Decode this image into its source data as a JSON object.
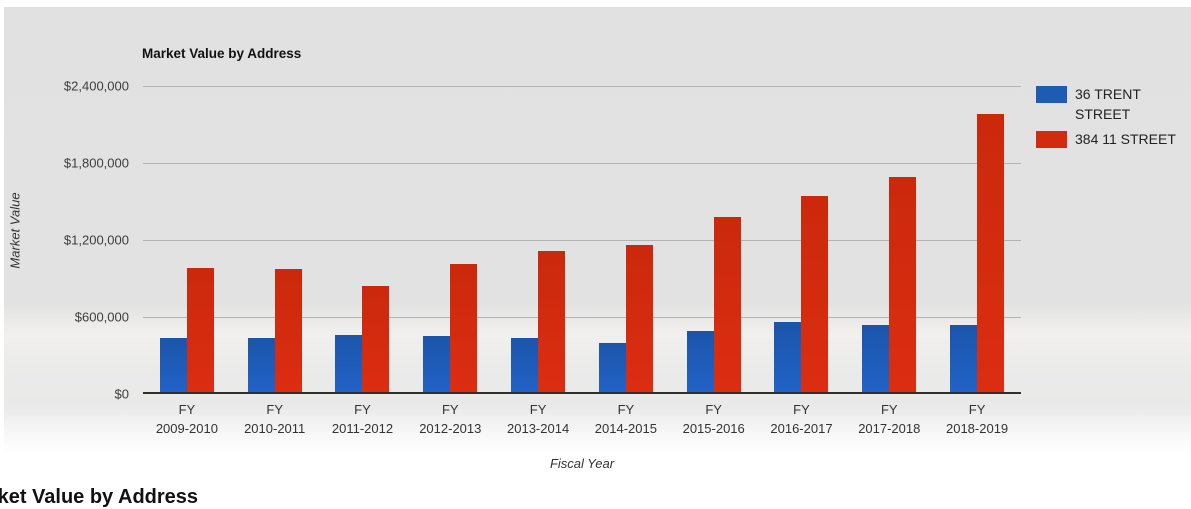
{
  "page": {
    "clipped_title": "Market Value by Address"
  },
  "chart_data": {
    "type": "bar",
    "title": "Market Value by Address",
    "xlabel": "Fiscal Year",
    "ylabel": "Market Value",
    "categories": [
      "FY 2009-2010",
      "FY 2010-2011",
      "FY 2011-2012",
      "FY 2012-2013",
      "FY 2013-2014",
      "FY 2014-2015",
      "FY 2015-2016",
      "FY 2016-2017",
      "FY 2017-2018",
      "FY 2018-2019"
    ],
    "series": [
      {
        "name": "36 TRENT STREET",
        "color": "#1d5cb5",
        "color_top": "#1b55aa",
        "color_bottom": "#2263c8",
        "values": [
          440000,
          435000,
          460000,
          455000,
          440000,
          400000,
          490000,
          560000,
          540000,
          540000
        ]
      },
      {
        "name": "384 11 STREET",
        "color": "#d32b0e",
        "color_top": "#cb290c",
        "color_bottom": "#dc2d11",
        "values": [
          985000,
          975000,
          845000,
          1015000,
          1115000,
          1165000,
          1380000,
          1545000,
          1690000,
          2180000
        ]
      }
    ],
    "y_ticks": [
      {
        "value": 0,
        "label": "$0"
      },
      {
        "value": 600000,
        "label": "$600,000"
      },
      {
        "value": 1200000,
        "label": "$1,200,000"
      },
      {
        "value": 1800000,
        "label": "$1,800,000"
      },
      {
        "value": 2400000,
        "label": "$2,400,000"
      }
    ],
    "ylim": [
      0,
      2400000
    ],
    "grid": true,
    "legend_position": "right"
  }
}
